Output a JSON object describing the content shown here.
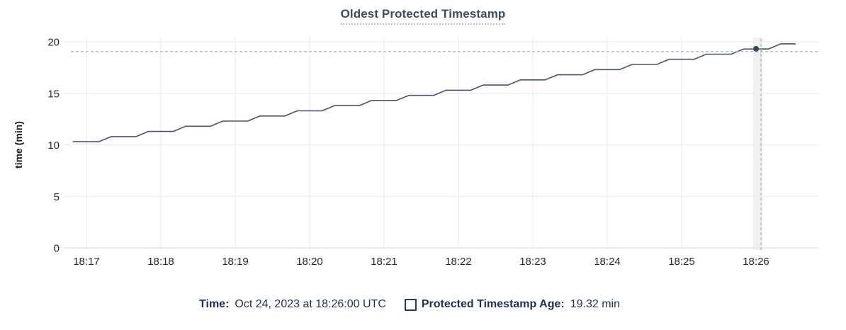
{
  "chart_data": {
    "type": "line",
    "title": "Oldest Protected Timestamp",
    "xlabel": "",
    "ylabel": "time (min)",
    "ylim": [
      0,
      20
    ],
    "yticks": [
      0,
      5,
      10,
      15,
      20
    ],
    "xticks": [
      "18:17",
      "18:18",
      "18:19",
      "18:20",
      "18:21",
      "18:22",
      "18:23",
      "18:24",
      "18:25",
      "18:26"
    ],
    "x_minutes_per_tick": 1,
    "grid": true,
    "legend_position": "bottom",
    "series": [
      {
        "name": "Protected Timestamp Age",
        "unit": "min",
        "points_t_seconds_from_1817_and_value_min": [
          [
            -11,
            10.3
          ],
          [
            10,
            10.3
          ],
          [
            20,
            10.8
          ],
          [
            40,
            10.8
          ],
          [
            50,
            11.3
          ],
          [
            70,
            11.3
          ],
          [
            80,
            11.8
          ],
          [
            100,
            11.8
          ],
          [
            110,
            12.3
          ],
          [
            130,
            12.3
          ],
          [
            140,
            12.8
          ],
          [
            160,
            12.8
          ],
          [
            170,
            13.3
          ],
          [
            190,
            13.3
          ],
          [
            200,
            13.8
          ],
          [
            220,
            13.8
          ],
          [
            230,
            14.3
          ],
          [
            250,
            14.3
          ],
          [
            260,
            14.8
          ],
          [
            280,
            14.8
          ],
          [
            290,
            15.3
          ],
          [
            310,
            15.3
          ],
          [
            320,
            15.8
          ],
          [
            340,
            15.8
          ],
          [
            350,
            16.3
          ],
          [
            370,
            16.3
          ],
          [
            380,
            16.8
          ],
          [
            400,
            16.8
          ],
          [
            410,
            17.3
          ],
          [
            430,
            17.3
          ],
          [
            440,
            17.8
          ],
          [
            460,
            17.8
          ],
          [
            470,
            18.3
          ],
          [
            490,
            18.3
          ],
          [
            500,
            18.8
          ],
          [
            520,
            18.8
          ],
          [
            530,
            19.3
          ],
          [
            550,
            19.3
          ],
          [
            560,
            19.8
          ],
          [
            572,
            19.8
          ]
        ]
      }
    ],
    "hover": {
      "time_tick": "18:26",
      "t_seconds": 540,
      "value_min": 19.32
    }
  },
  "legend": {
    "time_label": "Time:",
    "time_value": "Oct 24, 2023 at 18:26:00 UTC",
    "series_label": "Protected Timestamp Age:",
    "series_value": "19.32 min",
    "series_checkbox_state": "unchecked"
  },
  "colors": {
    "title": "#3c4c63",
    "title_underline": "#b8c2ce",
    "axis_text": "#242a35",
    "axis_title_text": "#171c25",
    "grid": "#efefef",
    "axis_line": "#e3e5e7",
    "hover_band": "#edeff1",
    "line": "#46546c",
    "dot": "#394760",
    "crosshair": "#a5b4c2",
    "legend_text": "#1d3150",
    "checkbox_border": "#243a5c"
  }
}
